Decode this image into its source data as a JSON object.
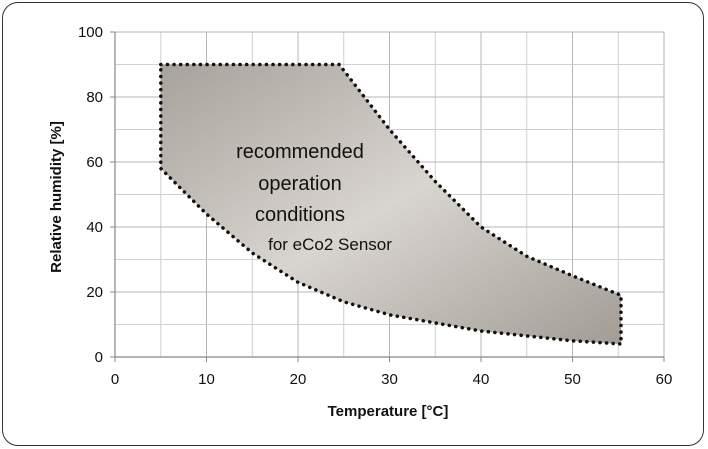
{
  "chart_data": {
    "type": "area",
    "xlabel": "Temperature [°C]",
    "ylabel": "Relative humidity  [%]",
    "xlim": [
      0,
      60
    ],
    "ylim": [
      0,
      100
    ],
    "x_ticks": [
      0,
      10,
      20,
      30,
      40,
      50,
      60
    ],
    "y_ticks": [
      0,
      20,
      40,
      60,
      80,
      100
    ],
    "x_minor_step": 5,
    "y_minor_step": 10,
    "grid": true,
    "region": {
      "label_lines": [
        "recommended",
        "operation",
        "conditions",
        "for eCo2 Sensor"
      ],
      "boundary": [
        {
          "x": 5,
          "y": 90
        },
        {
          "x": 24.5,
          "y": 90
        },
        {
          "x": 30,
          "y": 70
        },
        {
          "x": 35,
          "y": 54
        },
        {
          "x": 40,
          "y": 40
        },
        {
          "x": 45,
          "y": 31
        },
        {
          "x": 50,
          "y": 25
        },
        {
          "x": 55.3,
          "y": 19
        },
        {
          "x": 55.3,
          "y": 4
        },
        {
          "x": 50,
          "y": 5
        },
        {
          "x": 40,
          "y": 8
        },
        {
          "x": 30,
          "y": 13
        },
        {
          "x": 25,
          "y": 17
        },
        {
          "x": 20,
          "y": 23
        },
        {
          "x": 15,
          "y": 32
        },
        {
          "x": 10,
          "y": 44
        },
        {
          "x": 5,
          "y": 58
        }
      ],
      "fill_color_light": "#d6d2cd",
      "fill_color_dark": "#a29c95",
      "border_color": "#111111"
    }
  }
}
